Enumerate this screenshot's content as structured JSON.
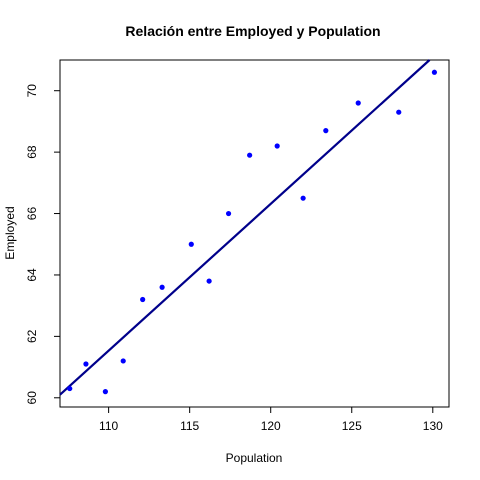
{
  "chart_data": {
    "type": "scatter",
    "title": "Relación entre Employed y Population",
    "xlabel": "Population",
    "ylabel": "Employed",
    "xlim": [
      107.0,
      131.0
    ],
    "ylim": [
      59.7,
      71.0
    ],
    "xticks": [
      110,
      115,
      120,
      125,
      130
    ],
    "yticks": [
      60,
      62,
      64,
      66,
      68,
      70
    ],
    "grid": false,
    "point_color": "#0000ff",
    "line_color": "#00008b",
    "points": [
      {
        "x": 107.6,
        "y": 60.3
      },
      {
        "x": 108.6,
        "y": 61.1
      },
      {
        "x": 109.8,
        "y": 60.2
      },
      {
        "x": 110.9,
        "y": 61.2
      },
      {
        "x": 112.1,
        "y": 63.2
      },
      {
        "x": 113.3,
        "y": 63.6
      },
      {
        "x": 115.1,
        "y": 65.0
      },
      {
        "x": 116.2,
        "y": 63.8
      },
      {
        "x": 117.4,
        "y": 66.0
      },
      {
        "x": 118.7,
        "y": 67.9
      },
      {
        "x": 120.4,
        "y": 68.2
      },
      {
        "x": 122.0,
        "y": 66.5
      },
      {
        "x": 123.4,
        "y": 68.7
      },
      {
        "x": 125.4,
        "y": 69.6
      },
      {
        "x": 127.9,
        "y": 69.3
      },
      {
        "x": 130.1,
        "y": 70.6
      }
    ],
    "regression_line": {
      "from": {
        "x": 107.0,
        "y": 60.1
      },
      "to": {
        "x": 129.8,
        "y": 71.0
      }
    }
  }
}
